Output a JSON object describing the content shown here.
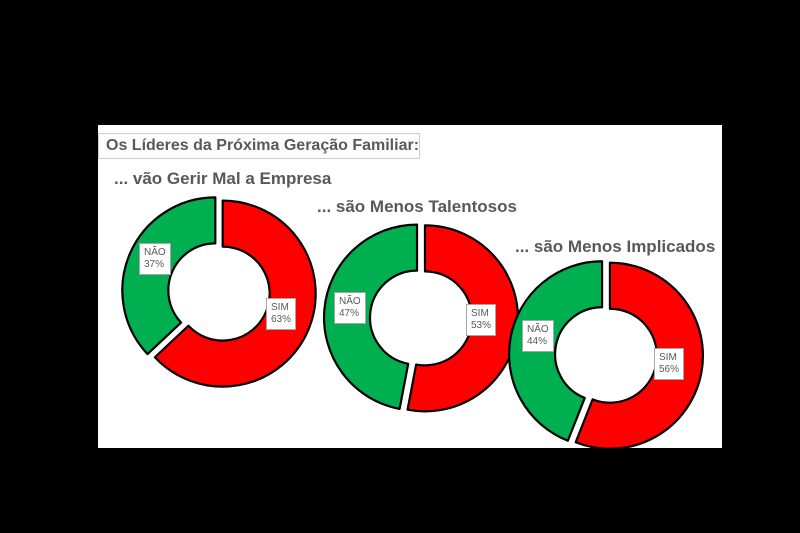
{
  "page": {
    "matte_color": "#000000",
    "canvas_color": "#ffffff"
  },
  "chart_data": {
    "type": "pie",
    "subtype": "exploded-doughnut",
    "title": "Os Líderes da Próxima Geração Familiar:",
    "legend_position": "none",
    "grid": false,
    "colors": {
      "sim": "#ff0000",
      "nao": "#00b050",
      "outline": "#000000",
      "text": "#595959",
      "label_border": "#a6a6a6",
      "label_background": "#ffffff"
    },
    "charts": [
      {
        "title": "... vão Gerir Mal a Empresa",
        "slices": [
          {
            "label": "SIM",
            "value": 63,
            "pct_text": "63%",
            "color": "#ff0000"
          },
          {
            "label": "NÃO",
            "value": 37,
            "pct_text": "37%",
            "color": "#00b050"
          }
        ]
      },
      {
        "title": "... são Menos Talentosos",
        "slices": [
          {
            "label": "SIM",
            "value": 53,
            "pct_text": "53%",
            "color": "#ff0000"
          },
          {
            "label": "NÃO",
            "value": 47,
            "pct_text": "47%",
            "color": "#00b050"
          }
        ]
      },
      {
        "title": "... são Menos Implicados",
        "slices": [
          {
            "label": "SIM",
            "value": 56,
            "pct_text": "56%",
            "color": "#ff0000"
          },
          {
            "label": "NÃO",
            "value": 44,
            "pct_text": "44%",
            "color": "#00b050"
          }
        ]
      }
    ]
  }
}
